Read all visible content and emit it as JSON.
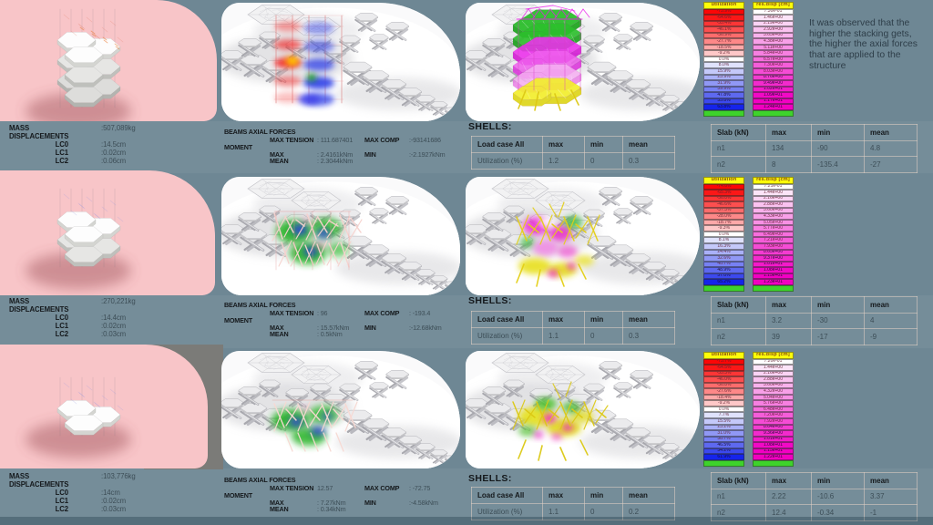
{
  "colors": {
    "background": "#6e8794",
    "pink_panel": "#f8c5c8",
    "white_panel": "#ededef",
    "gray_patch": "#7b7b78",
    "legend_header_bg": "#fdfd0a",
    "legend_green": "#3ed32b",
    "utilization_scale": [
      "#fb0606",
      "#fb1717",
      "#fc3636",
      "#fc4f4f",
      "#fd6c6c",
      "#fd8888",
      "#fea8a8",
      "#fec8c8",
      "#ffffff",
      "#dfe2fc",
      "#c4c9fa",
      "#a9b0f8",
      "#9098f5",
      "#7781f3",
      "#5e69f0",
      "#3c49ee",
      "#1524eb"
    ],
    "disp_scale": [
      "#ffffff",
      "#fce4f8",
      "#fbd3f4",
      "#fac2f0",
      "#f9b1ec",
      "#f8a0e8",
      "#f790e4",
      "#f77fe1",
      "#f66edd",
      "#f55dd9",
      "#f54cd5",
      "#f43bd1",
      "#f32acd",
      "#f31aca",
      "#f209c6",
      "#f200c3",
      "#f100c0"
    ],
    "beams_tension_color": "#e04040",
    "beams_compression_color": "#4050e0"
  },
  "note": {
    "lines": [
      "It was observed that the",
      "higher the stacking gets,",
      "the higher the axial forces",
      "that are applied to the",
      "structure"
    ]
  },
  "rows": [
    {
      "mass_label": "MASS",
      "mass_value": ":507,089kg",
      "displacements_label": "DISPLACEMENTS",
      "lc": [
        {
          "label": "LC0",
          "value": ":14.5cm"
        },
        {
          "label": "LC1",
          "value": ":0.02cm"
        },
        {
          "label": "LC2",
          "value": ":0.06cm"
        }
      ],
      "beams": {
        "title": "BEAMS AXIAL FORCES",
        "moment_label": "MOMENT",
        "max_tension_label": "MAX TENSION",
        "max_tension_value": ": 111.687401",
        "max_comp_label": "MAX COMP",
        "max_comp_value": ":-93141686",
        "max_label": "MAX",
        "max_value": ": 2.4161kNm",
        "min_label": "MIN",
        "min_value": ":-2.1927kNm",
        "mean_label": "MEAN",
        "mean_value": ": 2.3044kNm"
      },
      "shells": {
        "title": "SHELLS:",
        "headers": [
          "Load case All",
          "max",
          "min",
          "mean"
        ],
        "rows": [
          [
            "Utilization (%)",
            "1.2",
            "0",
            "0.3"
          ]
        ]
      },
      "slab": {
        "headers": [
          "Slab (kN)",
          "max",
          "min",
          "mean"
        ],
        "rows": [
          [
            "n1",
            "134",
            "-90",
            "4.8"
          ],
          [
            "n2",
            "8",
            "-135.4",
            "-27"
          ]
        ]
      },
      "legend_utilization": {
        "title": "utilization",
        "values": [
          "-73.9%",
          "-64.6%",
          "-55.4%",
          "-46.1%",
          "-36.9%",
          "-27.7%",
          "-18.5%",
          "-9.2%",
          "0.0%",
          "8.0%",
          "15.9%",
          "23.9%",
          "31.9%",
          "39.9%",
          "47.8%",
          "55.8%",
          "63.8%"
        ]
      },
      "legend_disp": {
        "title": "res.disp [cm]",
        "values": [
          "7.30e-01",
          "1.46e+00",
          "2.19e+00",
          "2.92e+00",
          "3.65e+00",
          "4.38e+00",
          "5.11e+00",
          "5.84e+00",
          "6.57e+00",
          "7.30e+00",
          "8.03e+00",
          "8.76e+00",
          "9.49e+00",
          "1.02e+01",
          "1.09e+01",
          "1.17e+01",
          "1.24e+01"
        ]
      }
    },
    {
      "mass_label": "MASS",
      "mass_value": ":270,221kg",
      "displacements_label": "DISPLACEMENTS",
      "lc": [
        {
          "label": "LC0",
          "value": ":14.4cm"
        },
        {
          "label": "LC1",
          "value": ":0.02cm"
        },
        {
          "label": "LC2",
          "value": ":0.03cm"
        }
      ],
      "beams": {
        "title": "BEAMS AXIAL FORCES",
        "moment_label": "MOMENT",
        "max_tension_label": "MAX TENSION",
        "max_tension_value": ": 96",
        "max_comp_label": "MAX COMP",
        "max_comp_value": ": -193.4",
        "max_label": "MAX",
        "max_value": ": 15.57kNm",
        "min_label": "MIN",
        "min_value": ":-12.68kNm",
        "mean_label": "MEAN",
        "mean_value": ": 0.5kNm"
      },
      "shells": {
        "title": "SHELLS:",
        "headers": [
          "Load case All",
          "max",
          "min",
          "mean"
        ],
        "rows": [
          [
            "Utilization (%)",
            "1.1",
            "0",
            "0.3"
          ]
        ]
      },
      "slab": {
        "headers": [
          "Slab (kN)",
          "max",
          "min",
          "mean"
        ],
        "rows": [
          [
            "n1",
            "3.2",
            "-30",
            "4"
          ],
          [
            "n2",
            "39",
            "-17",
            "-9"
          ]
        ]
      },
      "legend_utilization": {
        "title": "utilization",
        "values": [
          "-74.6%",
          "-65.3%",
          "-56.0%",
          "-46.6%",
          "-37.3%",
          "-28.0%",
          "-18.7%",
          "-9.3%",
          "0.0%",
          "8.1%",
          "16.3%",
          "24.4%",
          "32.6%",
          "40.7%",
          "48.9%",
          "57.0%",
          "65.2%"
        ]
      },
      "legend_disp": {
        "title": "res.disp [cm]",
        "values": [
          "7.21e-01",
          "1.44e+00",
          "2.16e+00",
          "2.88e+00",
          "3.60e+00",
          "4.33e+00",
          "5.05e+00",
          "5.77e+00",
          "6.49e+00",
          "7.21e+00",
          "7.93e+00",
          "8.65e+00",
          "9.37e+00",
          "1.01e+01",
          "1.08e+01",
          "1.15e+01",
          "1.23e+01"
        ]
      }
    },
    {
      "mass_label": "MASS",
      "mass_value": ":103,776kg",
      "displacements_label": "DISPLACEMENTS",
      "lc": [
        {
          "label": "LC0",
          "value": ":14cm"
        },
        {
          "label": "LC1",
          "value": ":0.02cm"
        },
        {
          "label": "LC2",
          "value": ":0.03cm"
        }
      ],
      "beams": {
        "title": "BEAMS AXIAL FORCES",
        "moment_label": "MOMENT",
        "max_tension_label": "MAX TENSION",
        "max_tension_value": "12.57",
        "max_comp_label": "MAX COMP",
        "max_comp_value": ": -72.75",
        "max_label": "MAX",
        "max_value": ": 7.27kNm",
        "min_label": "MIN",
        "min_value": ":-4.58kNm",
        "mean_label": "MEAN",
        "mean_value": ": 0.34kNm"
      },
      "shells": {
        "title": "SHELLS:",
        "headers": [
          "Load case All",
          "max",
          "min",
          "mean"
        ],
        "rows": [
          [
            "Utilization (%)",
            "1.1",
            "0",
            "0.2"
          ]
        ]
      },
      "slab": {
        "headers": [
          "Slab (kN)",
          "max",
          "min",
          "mean"
        ],
        "rows": [
          [
            "n1",
            "2.22",
            "-10.6",
            "3.37"
          ],
          [
            "n2",
            "12.4",
            "-0.34",
            "-1"
          ]
        ]
      },
      "legend_utilization": {
        "title": "utilization",
        "values": [
          "-73.7%",
          "-64.5%",
          "-55.3%",
          "-46.0%",
          "-36.8%",
          "-27.6%",
          "-18.4%",
          "-9.2%",
          "0.0%",
          "7.7%",
          "15.5%",
          "23.2%",
          "31.0%",
          "38.7%",
          "46.5%",
          "54.2%",
          "61.9%"
        ]
      },
      "legend_disp": {
        "title": "res.disp [cm]",
        "values": [
          "7.20e-01",
          "1.44e+00",
          "2.16e+00",
          "2.88e+00",
          "3.60e+00",
          "4.32e+00",
          "5.04e+00",
          "5.76e+00",
          "6.48e+00",
          "7.20e+00",
          "7.92e+00",
          "8.64e+00",
          "9.36e+00",
          "1.01e+01",
          "1.08e+01",
          "1.15e+01",
          "1.22e+01"
        ]
      }
    }
  ]
}
